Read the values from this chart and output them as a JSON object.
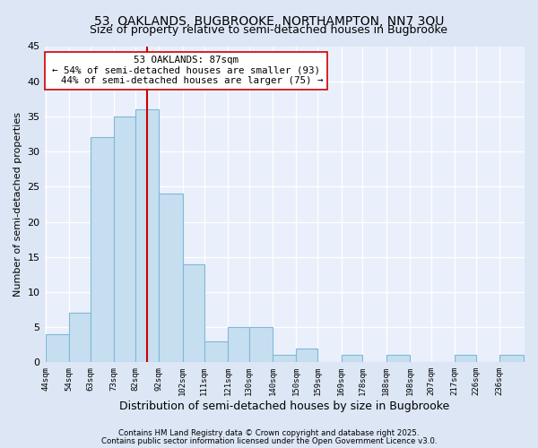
{
  "title": "53, OAKLANDS, BUGBROOKE, NORTHAMPTON, NN7 3QU",
  "subtitle": "Size of property relative to semi-detached houses in Bugbrooke",
  "xlabel": "Distribution of semi-detached houses by size in Bugbrooke",
  "ylabel": "Number of semi-detached properties",
  "bins": [
    44,
    54,
    63,
    73,
    82,
    92,
    102,
    111,
    121,
    130,
    140,
    150,
    159,
    169,
    178,
    188,
    198,
    207,
    217,
    226,
    236
  ],
  "counts": [
    4,
    7,
    32,
    35,
    36,
    24,
    14,
    3,
    5,
    5,
    1,
    2,
    0,
    1,
    0,
    1,
    0,
    0,
    1,
    0,
    1
  ],
  "bar_color": "#c6dff0",
  "bar_edge_color": "#7fb8d8",
  "property_value": 87,
  "vline_color": "#cc0000",
  "annotation_line1": "53 OAKLANDS: 87sqm",
  "annotation_line2": "← 54% of semi-detached houses are smaller (93)",
  "annotation_line3": "  44% of semi-detached houses are larger (75) →",
  "annotation_box_color": "#ffffff",
  "annotation_box_edge": "#cc0000",
  "ylim": [
    0,
    45
  ],
  "yticks": [
    0,
    5,
    10,
    15,
    20,
    25,
    30,
    35,
    40,
    45
  ],
  "tick_labels": [
    "44sqm",
    "54sqm",
    "63sqm",
    "73sqm",
    "82sqm",
    "92sqm",
    "102sqm",
    "111sqm",
    "121sqm",
    "130sqm",
    "140sqm",
    "150sqm",
    "159sqm",
    "169sqm",
    "178sqm",
    "188sqm",
    "198sqm",
    "207sqm",
    "217sqm",
    "226sqm",
    "236sqm"
  ],
  "footnote1": "Contains HM Land Registry data © Crown copyright and database right 2025.",
  "footnote2": "Contains public sector information licensed under the Open Government Licence v3.0.",
  "background_color": "#dce6f5",
  "plot_bg_color": "#eaf0fb",
  "grid_color": "#ffffff",
  "title_fontsize": 10,
  "subtitle_fontsize": 9,
  "xlabel_fontsize": 9,
  "ylabel_fontsize": 8
}
